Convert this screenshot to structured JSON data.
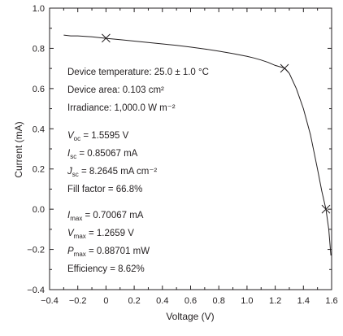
{
  "chart_data": {
    "type": "line",
    "xlabel": "Voltage (V)",
    "ylabel": "Current (mA)",
    "xlim": [
      -0.4,
      1.6
    ],
    "ylim": [
      -0.4,
      1.0
    ],
    "x_ticks": [
      "−0.4",
      "−0.2",
      "0",
      "0.2",
      "0.4",
      "0.6",
      "0.8",
      "1.0",
      "1.2",
      "1.4",
      "1.6"
    ],
    "y_ticks": [
      "−0.4",
      "−0.2",
      "0.0",
      "0.2",
      "0.4",
      "0.6",
      "0.8",
      "1.0"
    ],
    "grid": false,
    "series": [
      {
        "x": [
          -0.3,
          -0.25,
          -0.2,
          -0.1,
          0.0,
          0.1,
          0.2,
          0.3,
          0.4,
          0.5,
          0.6,
          0.7,
          0.8,
          0.9,
          1.0,
          1.05,
          1.1,
          1.15,
          1.2,
          1.25,
          1.27,
          1.3,
          1.35,
          1.4,
          1.45,
          1.5,
          1.53,
          1.5595,
          1.58,
          1.595
        ],
        "y": [
          0.866,
          0.862,
          0.862,
          0.857,
          0.85,
          0.843,
          0.836,
          0.829,
          0.822,
          0.815,
          0.806,
          0.797,
          0.786,
          0.774,
          0.76,
          0.752,
          0.742,
          0.73,
          0.715,
          0.705,
          0.7007,
          0.675,
          0.6,
          0.5,
          0.37,
          0.2,
          0.09,
          0.0,
          -0.1,
          -0.23
        ]
      }
    ],
    "markers": [
      {
        "x": 0.0,
        "y": 0.85067
      },
      {
        "x": 1.2659,
        "y": 0.70067
      },
      {
        "x": 1.5595,
        "y": 0.0
      }
    ]
  },
  "annotations": {
    "group1": [
      "Device temperature:  25.0 ± 1.0 °C",
      "Device area:  0.103 cm²",
      "Irradiance:  1,000.0 W m⁻²"
    ],
    "voc": {
      "sym": "V",
      "sub": "oc",
      "val": " = 1.5595 V"
    },
    "isc": {
      "sym": "I",
      "sub": "sc",
      "val": " = 0.85067 mA"
    },
    "jsc": {
      "sym": "J",
      "sub": "sc",
      "val": " = 8.2645 mA cm⁻²"
    },
    "ff": "Fill factor = 66.8%",
    "imax": {
      "sym": "I",
      "sub": "max",
      "val": " = 0.70067 mA"
    },
    "vmax": {
      "sym": "V",
      "sub": "max",
      "val": " = 1.2659 V"
    },
    "pmax": {
      "sym": "P",
      "sub": "max",
      "val": " = 0.88701 mW"
    },
    "eff": "Efficiency = 8.62%"
  }
}
